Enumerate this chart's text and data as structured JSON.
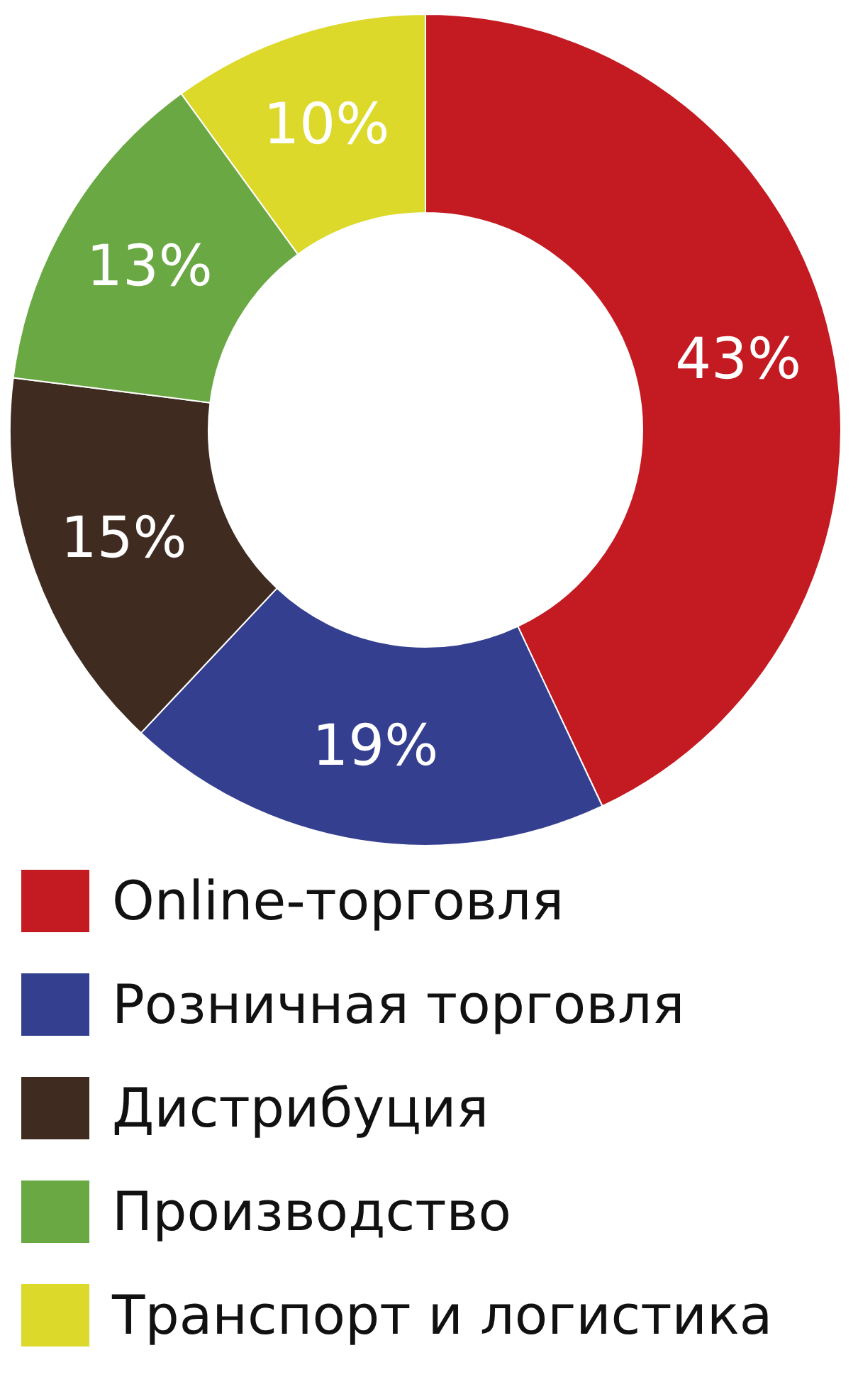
{
  "chart_data": {
    "type": "donut",
    "categories": [
      "Online-торговля",
      "Розничная торговля",
      "Дистрибуция",
      "Производство",
      "Транспорт и логистика"
    ],
    "values": [
      43,
      19,
      15,
      13,
      10
    ],
    "colors": [
      "#c41a22",
      "#343f8f",
      "#3f2b20",
      "#6aa843",
      "#dcd92a"
    ],
    "value_labels": [
      "43%",
      "19%",
      "15%",
      "13%",
      "10%"
    ],
    "legend": "bottom"
  }
}
